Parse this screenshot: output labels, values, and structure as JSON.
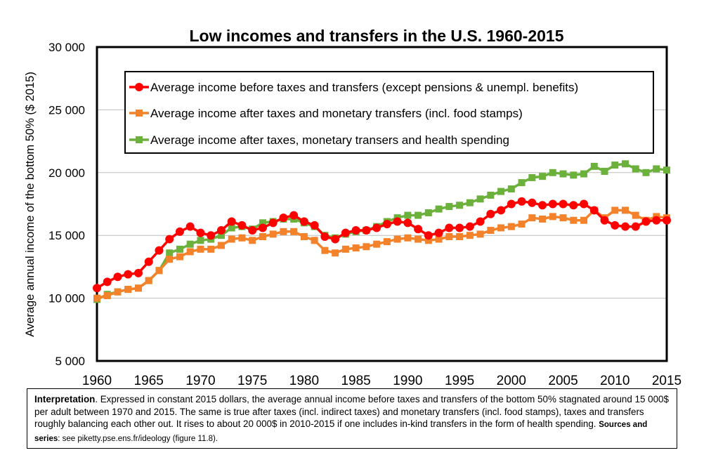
{
  "chart_data": {
    "type": "line",
    "title": "Low incomes and transfers in the U.S. 1960-2015",
    "ylabel": "Average annual income of the bottom 50% ($ 2015)",
    "xlabel": "",
    "xlim": [
      1960,
      2015
    ],
    "ylim": [
      5000,
      30000
    ],
    "x_ticks": [
      "1960",
      "1965",
      "1970",
      "1975",
      "1980",
      "1985",
      "1990",
      "1995",
      "2000",
      "2005",
      "2010",
      "2015"
    ],
    "y_ticks": [
      "5 000",
      "10 000",
      "15 000",
      "20 000",
      "25 000",
      "30 000"
    ],
    "legend_position": "top-left",
    "grid": "horizontal",
    "x": [
      1960,
      1961,
      1962,
      1963,
      1964,
      1965,
      1966,
      1967,
      1968,
      1969,
      1970,
      1971,
      1972,
      1973,
      1974,
      1975,
      1976,
      1977,
      1978,
      1979,
      1980,
      1981,
      1982,
      1983,
      1984,
      1985,
      1986,
      1987,
      1988,
      1989,
      1990,
      1991,
      1992,
      1993,
      1994,
      1995,
      1996,
      1997,
      1998,
      1999,
      2000,
      2001,
      2002,
      2003,
      2004,
      2005,
      2006,
      2007,
      2008,
      2009,
      2010,
      2011,
      2012,
      2013,
      2014,
      2015
    ],
    "series": [
      {
        "name": "Average income before taxes and transfers (except pensions & unempl. benefits)",
        "color": "#ff0000",
        "marker": "circle",
        "values": [
          10800,
          11300,
          11700,
          11900,
          12000,
          12900,
          13800,
          14700,
          15300,
          15700,
          15200,
          15000,
          15400,
          16100,
          15800,
          15400,
          15600,
          16000,
          16400,
          16600,
          16100,
          15800,
          14900,
          14700,
          15200,
          15400,
          15400,
          15600,
          15900,
          16100,
          16000,
          15500,
          15000,
          15200,
          15600,
          15600,
          15700,
          16100,
          16700,
          17000,
          17500,
          17700,
          17600,
          17400,
          17500,
          17500,
          17400,
          17500,
          17000,
          16200,
          15800,
          15700,
          15700,
          16100,
          16200,
          16200
        ]
      },
      {
        "name": "Average income after taxes and monetary transfers (incl. food stamps)",
        "color": "#f4822b",
        "marker": "square",
        "values": [
          10000,
          10200,
          10500,
          10700,
          10800,
          11400,
          12200,
          13100,
          13300,
          13700,
          13900,
          13900,
          14200,
          14700,
          14800,
          14600,
          14900,
          15100,
          15300,
          15300,
          14900,
          14600,
          13800,
          13600,
          13900,
          14000,
          14100,
          14300,
          14500,
          14700,
          14800,
          14700,
          14600,
          14700,
          14900,
          14900,
          15000,
          15100,
          15400,
          15600,
          15700,
          15900,
          16400,
          16300,
          16500,
          16400,
          16200,
          16200,
          17000,
          16400,
          17000,
          17000,
          16600,
          16200,
          16500,
          16400
        ]
      },
      {
        "name": "Average income after taxes, monetary transers and health spending",
        "color": "#6bb13c",
        "marker": "square",
        "values": [
          9900,
          10300,
          10500,
          10700,
          10800,
          11400,
          12200,
          13600,
          13900,
          14300,
          14600,
          14700,
          15000,
          15600,
          15700,
          15500,
          16000,
          16100,
          16300,
          16300,
          16000,
          15700,
          15000,
          14800,
          15100,
          15300,
          15400,
          15700,
          16100,
          16400,
          16600,
          16600,
          16800,
          17100,
          17300,
          17400,
          17600,
          17900,
          18200,
          18500,
          18700,
          19200,
          19600,
          19700,
          20000,
          19900,
          19800,
          19900,
          20500,
          20100,
          20600,
          20700,
          20300,
          20000,
          20300,
          20200
        ]
      }
    ]
  },
  "interpretation": {
    "lead": "Interpretation",
    "body": ". Expressed in constant 2015 dollars, the average annual income before taxes and transfers of the bottom 50% stagnated around 15 000$ per adult between 1970 and 2015. The same is true after taxes (incl. indirect taxes) and monetary transfers (incl. food stamps), taxes and transfers roughly balancing each other out. It rises to about 20 000$ in 2010-2015 if one includes in-kind transfers in the form of health spending. ",
    "sources_lead": "Sources and series",
    "sources_body": ": see piketty.pse.ens.fr/ideology (figure 11.8)."
  }
}
